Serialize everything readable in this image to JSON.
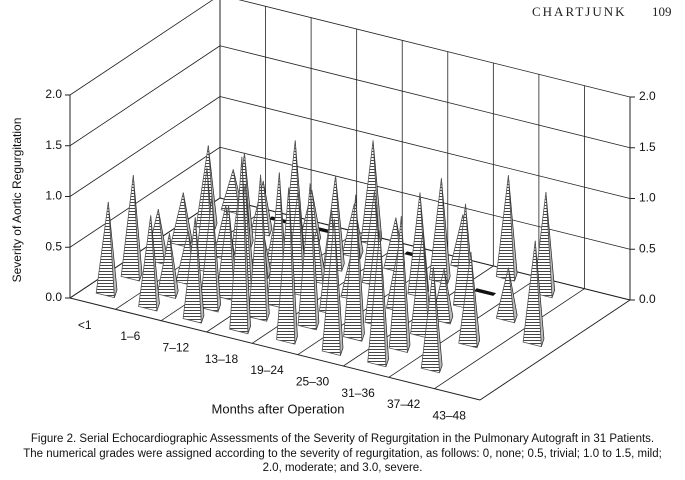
{
  "header": {
    "running_title": "CHARTJUNK",
    "page_number": 109
  },
  "chart_data": {
    "type": "pyramid3d",
    "ylabel": "Severity of Aortic Regurgitation",
    "xlabel": "Months after Operation",
    "categories": [
      "<1",
      "1–6",
      "7–12",
      "13–18",
      "19–24",
      "25–30",
      "31–36",
      "37–42",
      "43–48"
    ],
    "values": [
      [
        0.9,
        1.0,
        0.5,
        0.5,
        0.8,
        0.4
      ],
      [
        0.9,
        0.6,
        0.5,
        1.0,
        0.5,
        0.9,
        0.5,
        0
      ],
      [
        1.0,
        1.1,
        0.9,
        1.0,
        0.5,
        0.6,
        1.1,
        0.5,
        0
      ],
      [
        1.7,
        1.4,
        1.3,
        1.0,
        0.5,
        0.9,
        0.5,
        1.0
      ],
      [
        1.5,
        1.4,
        1.0,
        0.5,
        0.9,
        0.5,
        0
      ],
      [
        1.3,
        1.4,
        1.0,
        0.6,
        1.0,
        1.0,
        0.5
      ],
      [
        1.3,
        1.3,
        1.0,
        0.5,
        1.0,
        0,
        1.0
      ],
      [
        1.0,
        0.9,
        0.5,
        1.0
      ],
      [
        1.0
      ]
    ],
    "ylim": [
      0,
      2
    ],
    "yticks": [
      {
        "value": 0,
        "label": "0.0"
      },
      0.5,
      {
        "value": 1,
        "label": "1.0"
      },
      1.5,
      {
        "value": 2,
        "label": "2.0"
      }
    ],
    "grid": true,
    "color": "#555555"
  },
  "caption": {
    "title": "Figure 2. Serial Echocardiographic Assessments of the Severity of Regurgitation in the Pulmonary Autograft in 31 Patients.",
    "text": "The numerical grades were assigned according to the severity of regurgitation, as follows: 0, none; 0.5, trivial; 1.0 to 1.5, mild; 2.0, moderate; and 3.0, severe."
  }
}
